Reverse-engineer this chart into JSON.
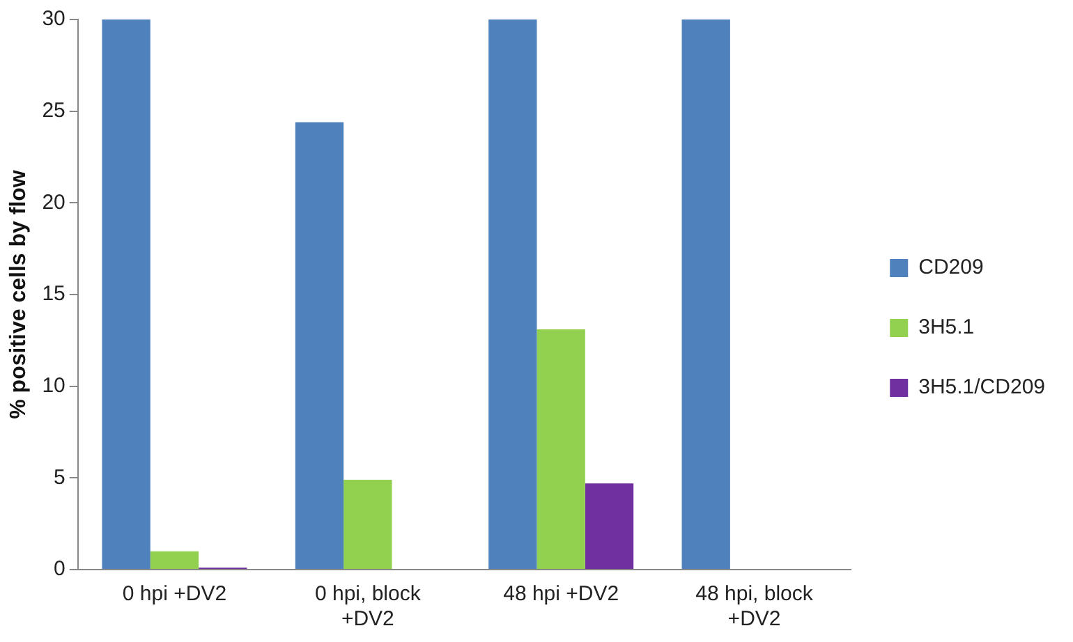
{
  "chart_data": {
    "type": "bar",
    "ylabel": "% positive cells by flow",
    "categories": [
      "0 hpi +DV2",
      "0 hpi, block +DV2",
      "48 hpi +DV2",
      "48 hpi, block +DV2"
    ],
    "series": [
      {
        "name": "CD209",
        "color": "#4f81bd",
        "values": [
          30,
          24.4,
          30,
          30
        ]
      },
      {
        "name": "3H5.1",
        "color": "#92d050",
        "values": [
          1.0,
          4.9,
          13.1,
          0
        ]
      },
      {
        "name": "3H5.1/CD209",
        "color": "#7030a0",
        "values": [
          0.1,
          0,
          4.7,
          0
        ]
      }
    ],
    "ylim": [
      0,
      30
    ],
    "yticks": [
      0,
      5,
      10,
      15,
      20,
      25,
      30
    ],
    "grid": false,
    "legend": "right"
  }
}
